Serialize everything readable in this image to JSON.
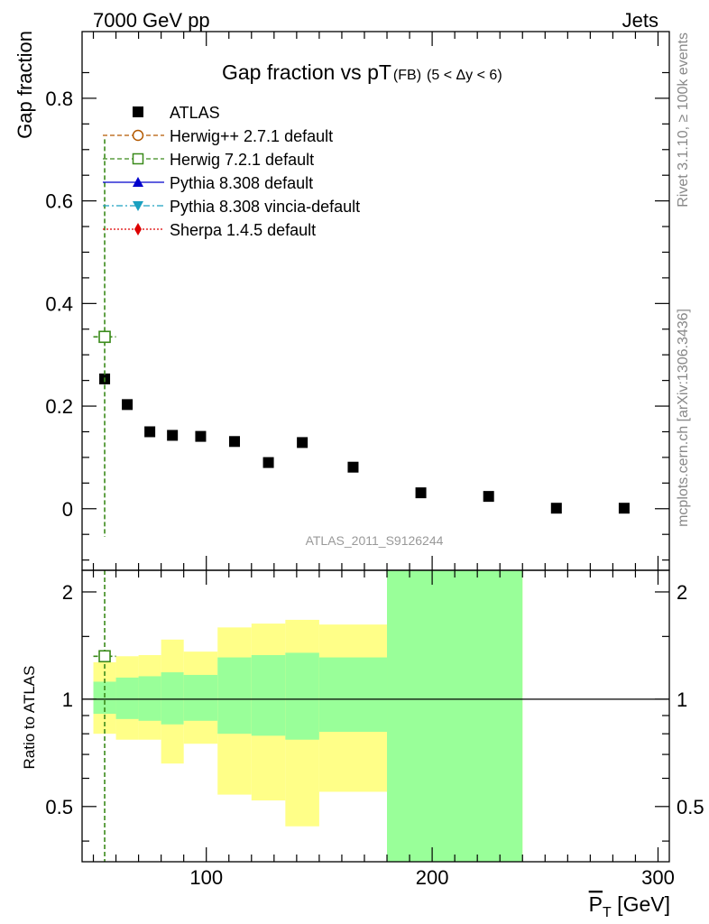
{
  "header": {
    "left": "7000 GeV pp",
    "right": "Jets"
  },
  "side_labels": {
    "rivet": "Rivet 3.1.10, ≥ 100k events",
    "mcplots": "mcplots.cern.ch [arXiv:1306.3436]"
  },
  "chart_data": [
    {
      "type": "scatter",
      "panel": "main",
      "title": "Gap fraction vs pT",
      "title_suffix": "(FB)",
      "title_cut": "(5 < Δy < 6)",
      "xlabel": "",
      "ylabel": "Gap fraction",
      "xlim": [
        45,
        305
      ],
      "ylim": [
        -0.12,
        0.93
      ],
      "yticks": [
        0,
        0.2,
        0.4,
        0.6,
        0.8
      ],
      "yticklabels": [
        "0",
        "0.2",
        "0.4",
        "0.6",
        "0.8"
      ],
      "watermark": "ATLAS_2011_S9126244",
      "legend": {
        "position": "top-left",
        "entries": [
          {
            "label": "ATLAS",
            "marker": "square-filled",
            "color": "#000000",
            "line": "none"
          },
          {
            "label": "Herwig++ 2.7.1 default",
            "marker": "circle-open",
            "color": "#b35900",
            "line": "dashed"
          },
          {
            "label": "Herwig 7.2.1 default",
            "marker": "square-open",
            "color": "#3a8a1a",
            "line": "dashed"
          },
          {
            "label": "Pythia 8.308 default",
            "marker": "triangle-up",
            "color": "#0000cc",
            "line": "solid"
          },
          {
            "label": "Pythia 8.308 vincia-default",
            "marker": "triangle-down",
            "color": "#1aa0c0",
            "line": "dashdot"
          },
          {
            "label": "Sherpa 1.4.5 default",
            "marker": "diamond",
            "color": "#dd0000",
            "line": "dotted"
          }
        ]
      },
      "series": [
        {
          "name": "ATLAS",
          "x": [
            55,
            65,
            75,
            85,
            97.5,
            112.5,
            127.5,
            142.5,
            165,
            195,
            225,
            255,
            285
          ],
          "y": [
            0.253,
            0.203,
            0.15,
            0.143,
            0.141,
            0.131,
            0.09,
            0.129,
            0.081,
            0.031,
            0.024,
            0.001,
            0.001
          ]
        },
        {
          "name": "Herwig 7.2.1 default",
          "x": [
            55
          ],
          "y": [
            0.335
          ],
          "xerr": [
            5
          ],
          "yerr_low": [
            0.39
          ],
          "yerr_high": [
            0.385
          ]
        }
      ]
    },
    {
      "type": "area",
      "panel": "ratio",
      "ylabel": "Ratio to ATLAS",
      "xlabel": "P_T [GeV]",
      "xlabel_main": "P",
      "xlabel_sub": "T",
      "xlabel_unit": " [GeV]",
      "xlim": [
        45,
        305
      ],
      "ylim": [
        0.35,
        2.3
      ],
      "xticks": [
        100,
        200,
        300
      ],
      "xticklabels": [
        "100",
        "200",
        "300"
      ],
      "yticks": [
        0.5,
        1,
        2
      ],
      "yticklabels": [
        "0.5",
        "1",
        "2"
      ],
      "reference_line": 1,
      "bins": [
        {
          "x0": 50,
          "x1": 60,
          "stat_lo": 0.91,
          "stat_hi": 1.12,
          "tot_lo": 0.8,
          "tot_hi": 1.27
        },
        {
          "x0": 60,
          "x1": 70,
          "stat_lo": 0.88,
          "stat_hi": 1.15,
          "tot_lo": 0.77,
          "tot_hi": 1.32
        },
        {
          "x0": 70,
          "x1": 80,
          "stat_lo": 0.87,
          "stat_hi": 1.16,
          "tot_lo": 0.77,
          "tot_hi": 1.33
        },
        {
          "x0": 80,
          "x1": 90,
          "stat_lo": 0.85,
          "stat_hi": 1.19,
          "tot_lo": 0.66,
          "tot_hi": 1.47
        },
        {
          "x0": 90,
          "x1": 105,
          "stat_lo": 0.87,
          "stat_hi": 1.17,
          "tot_lo": 0.75,
          "tot_hi": 1.36
        },
        {
          "x0": 105,
          "x1": 120,
          "stat_lo": 0.8,
          "stat_hi": 1.31,
          "tot_lo": 0.54,
          "tot_hi": 1.59
        },
        {
          "x0": 120,
          "x1": 135,
          "stat_lo": 0.79,
          "stat_hi": 1.33,
          "tot_lo": 0.52,
          "tot_hi": 1.63
        },
        {
          "x0": 135,
          "x1": 150,
          "stat_lo": 0.77,
          "stat_hi": 1.35,
          "tot_lo": 0.44,
          "tot_hi": 1.67
        },
        {
          "x0": 150,
          "x1": 180,
          "stat_lo": 0.81,
          "stat_hi": 1.31,
          "tot_lo": 0.55,
          "tot_hi": 1.62
        },
        {
          "x0": 180,
          "x1": 240,
          "stat_lo": 0.35,
          "stat_hi": 2.3,
          "tot_lo": 0.35,
          "tot_hi": 2.3
        }
      ],
      "series": [
        {
          "name": "Herwig 7.2.1 default",
          "x": [
            55
          ],
          "y": [
            1.32
          ],
          "xerr": [
            5
          ]
        }
      ],
      "colors": {
        "stat_band": "#99ff99",
        "total_band": "#ffff88"
      }
    }
  ]
}
